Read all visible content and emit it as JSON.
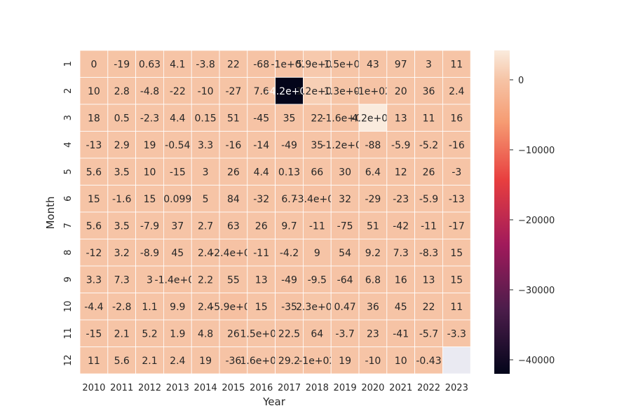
{
  "chart_data": {
    "type": "heatmap",
    "xlabel": "Year",
    "ylabel": "Month",
    "x_categories": [
      "2010",
      "2011",
      "2012",
      "2013",
      "2014",
      "2015",
      "2016",
      "2017",
      "2018",
      "2019",
      "2020",
      "2021",
      "2022",
      "2023"
    ],
    "y_categories": [
      "1",
      "2",
      "3",
      "4",
      "5",
      "6",
      "7",
      "8",
      "9",
      "10",
      "11",
      "12"
    ],
    "cells": [
      [
        "0",
        "-19",
        "0.63",
        "4.1",
        "-3.8",
        "22",
        "-68",
        "-1e+02",
        "5.9e+02",
        "1.5e+02",
        "43",
        "97",
        "3",
        "11"
      ],
      [
        "10",
        "2.8",
        "-4.8",
        "-22",
        "-10",
        "-27",
        "7.6",
        "-4.2e+04",
        "1.2e+03",
        "1.3e+02",
        "-1e+02",
        "20",
        "36",
        "2.4"
      ],
      [
        "18",
        "0.5",
        "-2.3",
        "4.4",
        "0.15",
        "51",
        "-45",
        "35",
        "22",
        "-1.6e+02",
        "4.2e+03",
        "13",
        "11",
        "16"
      ],
      [
        "-13",
        "2.9",
        "19",
        "-0.54",
        "3.3",
        "-16",
        "-14",
        "-49",
        "35",
        "-1.2e+02",
        "-88",
        "-5.9",
        "-5.2",
        "-16"
      ],
      [
        "5.6",
        "3.5",
        "10",
        "-15",
        "3",
        "26",
        "4.4",
        "0.13",
        "66",
        "30",
        "6.4",
        "12",
        "26",
        "-3"
      ],
      [
        "15",
        "-1.6",
        "15",
        "0.099",
        "5",
        "84",
        "-32",
        "6.7",
        "-3.4e+02",
        "32",
        "-29",
        "-23",
        "-5.9",
        "-13"
      ],
      [
        "5.6",
        "3.5",
        "-7.9",
        "37",
        "2.7",
        "63",
        "26",
        "9.7",
        "-11",
        "-75",
        "51",
        "-42",
        "-11",
        "-17"
      ],
      [
        "-12",
        "3.2",
        "-8.9",
        "45",
        "2.4",
        "-2.4e+02",
        "-11",
        "-4.2",
        "9",
        "54",
        "9.2",
        "7.3",
        "-8.3",
        "15"
      ],
      [
        "3.3",
        "7.3",
        "3",
        "-1.4e+02",
        "2.2",
        "55",
        "13",
        "-49",
        "-9.5",
        "-64",
        "6.8",
        "16",
        "13",
        "15"
      ],
      [
        "-4.4",
        "-2.8",
        "1.1",
        "9.9",
        "2.4",
        "-5.9e+02",
        "15",
        "-35",
        "2.3e+02",
        "0.47",
        "36",
        "45",
        "22",
        "11"
      ],
      [
        "-15",
        "2.1",
        "5.2",
        "1.9",
        "4.8",
        "26",
        "1.5e+02",
        "22.5",
        "64",
        "-3.7",
        "23",
        "-41",
        "-5.7",
        "-3.3"
      ],
      [
        "11",
        "5.6",
        "2.1",
        "2.4",
        "19",
        "-36",
        "1.6e+02",
        "29.2",
        "-1e+02",
        "19",
        "-10",
        "10",
        "-0.43",
        ""
      ]
    ],
    "colorbar": {
      "range": [
        -42000,
        4200
      ],
      "ticks": [
        "0",
        "−10000",
        "−20000",
        "−30000",
        "−40000"
      ],
      "tick_values": [
        0,
        -10000,
        -20000,
        -30000,
        -40000
      ],
      "colormap": "rocket"
    },
    "missing_color": "#eaeaf2"
  }
}
